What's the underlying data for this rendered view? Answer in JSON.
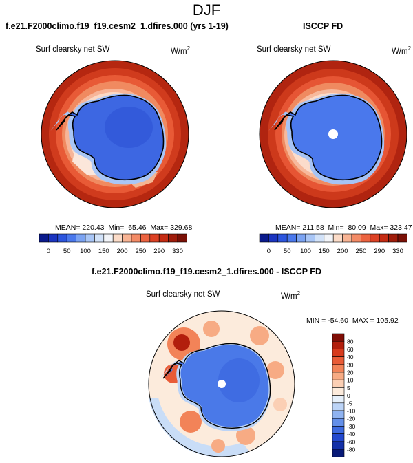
{
  "title": "DJF",
  "panels": {
    "model": {
      "title": "f.e21.F2000climo.f19_f19.cesm2_1.dfires.000 (yrs 1-19)",
      "subtitle": "Surf clearsky net SW",
      "units": "W/m",
      "units_sup": "2",
      "stats": "MEAN= 220.43  Min=  65.46  Max= 329.68"
    },
    "obs": {
      "title": "ISCCP FD",
      "subtitle": "Surf clearsky net SW",
      "units": "W/m",
      "units_sup": "2",
      "stats": "MEAN= 211.58  Min=  80.09  Max= 323.47"
    },
    "diff": {
      "title": "f.e21.F2000climo.f19_f19.cesm2_1.dfires.000 - ISCCP FD",
      "subtitle": "Surf clearsky net SW",
      "units": "W/m",
      "units_sup": "2",
      "stats": "MIN = -54.60  MAX = 105.92"
    }
  },
  "colorbars": {
    "abs": {
      "labels": [
        "0",
        "50",
        "100",
        "150",
        "200",
        "250",
        "290",
        "330"
      ],
      "colors": [
        "#0a1a8c",
        "#1a34c0",
        "#2c55de",
        "#4a78ec",
        "#7ba3f2",
        "#a9c6f6",
        "#d2e2f8",
        "#f2f4f8",
        "#fcdcc8",
        "#f8b494",
        "#f38b66",
        "#ec6340",
        "#dd4124",
        "#c52b12",
        "#a01c0a",
        "#7a1006"
      ]
    },
    "diff": {
      "labels": [
        "80",
        "60",
        "40",
        "30",
        "20",
        "10",
        "5",
        "0",
        "-5",
        "-10",
        "-20",
        "-30",
        "-40",
        "-60",
        "-80"
      ],
      "colors": [
        "#7f0d05",
        "#b21e0c",
        "#d73a1c",
        "#e95b36",
        "#f28358",
        "#f7ab84",
        "#fbcfb4",
        "#fcebdc",
        "#e6f0fb",
        "#bcd4f7",
        "#8fb3f1",
        "#638fe9",
        "#3d6ae0",
        "#2248cf",
        "#1330a8",
        "#081a78"
      ]
    }
  },
  "chart_data": [
    {
      "type": "heatmap",
      "projection": "south-polar-stereographic",
      "title": "f.e21.F2000climo.f19_f19.cesm2_1.dfires.000 (yrs 1-19)",
      "variable": "Surf clearsky net SW",
      "units": "W/m2",
      "mean": 220.43,
      "min": 65.46,
      "max": 329.68,
      "colorbar_levels": [
        0,
        50,
        100,
        150,
        200,
        250,
        290,
        330
      ]
    },
    {
      "type": "heatmap",
      "projection": "south-polar-stereographic",
      "title": "ISCCP FD",
      "variable": "Surf clearsky net SW",
      "units": "W/m2",
      "mean": 211.58,
      "min": 80.09,
      "max": 323.47,
      "colorbar_levels": [
        0,
        50,
        100,
        150,
        200,
        250,
        290,
        330
      ]
    },
    {
      "type": "heatmap",
      "projection": "south-polar-stereographic",
      "title": "f.e21.F2000climo.f19_f19.cesm2_1.dfires.000 - ISCCP FD",
      "variable": "Surf clearsky net SW",
      "units": "W/m2",
      "min": -54.6,
      "max": 105.92,
      "colorbar_levels": [
        -80,
        -60,
        -40,
        -30,
        -20,
        -10,
        -5,
        0,
        5,
        10,
        20,
        30,
        40,
        60,
        80
      ]
    }
  ]
}
